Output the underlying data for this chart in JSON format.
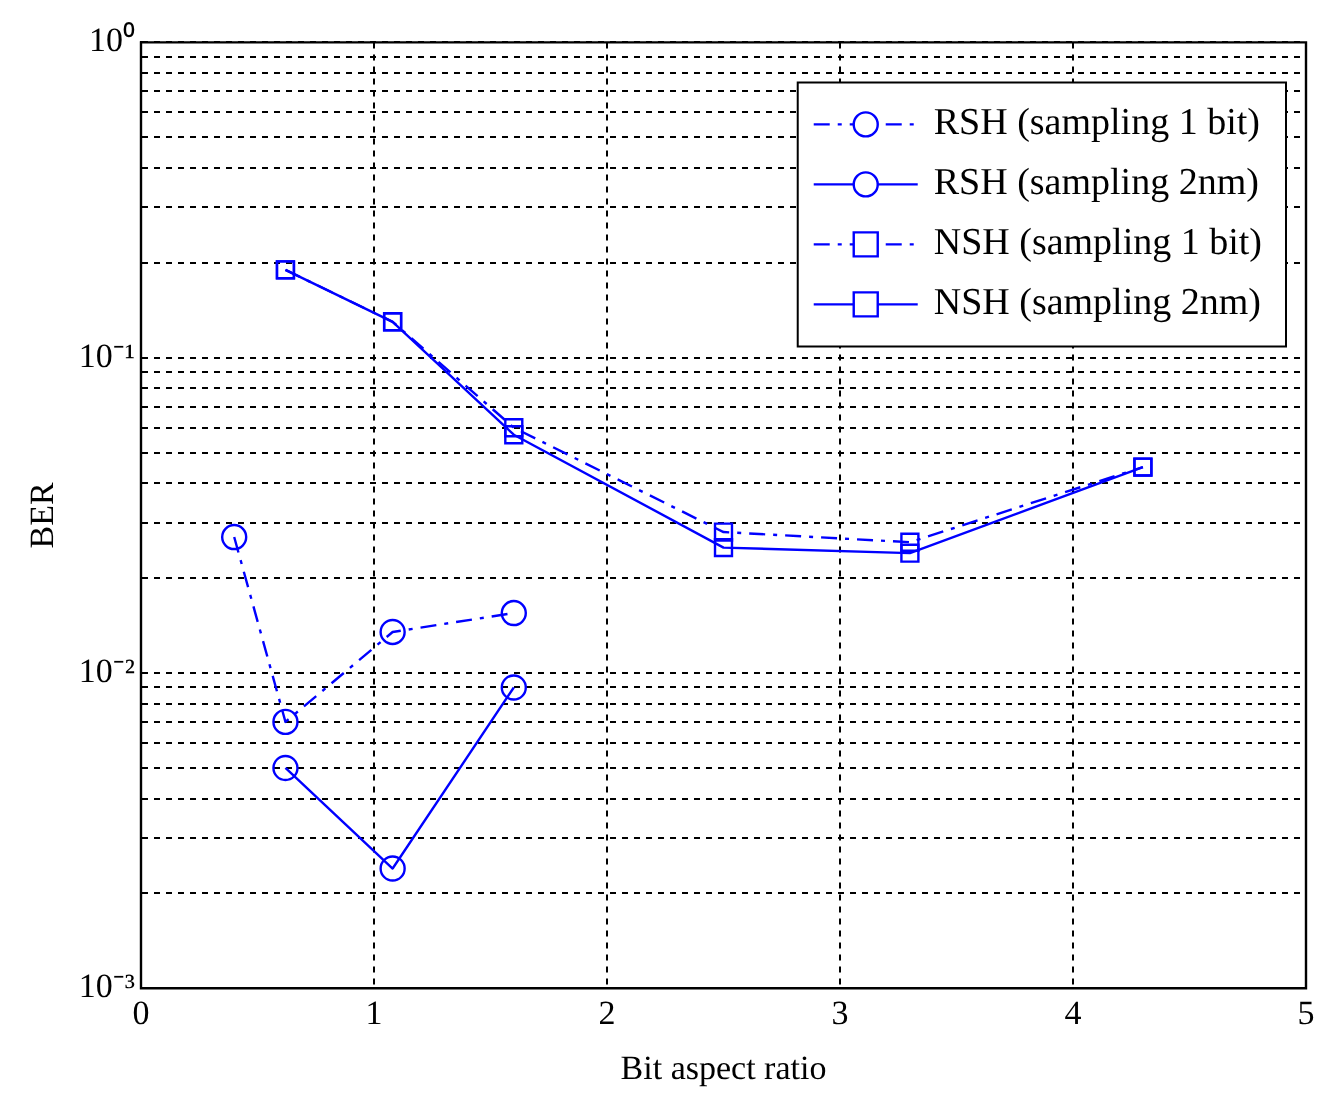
{
  "chart_data": {
    "type": "line",
    "xlabel": "Bit aspect ratio",
    "ylabel": "BER",
    "log": "y",
    "grid": true,
    "legend": "top right",
    "xlim": [
      0,
      5
    ],
    "xticks": [
      0,
      1,
      2,
      3,
      4,
      5
    ],
    "ylim": [
      0.001,
      1
    ],
    "yticks": [
      {
        "value": 0.001,
        "label": "10⁻³"
      },
      {
        "value": 0.002,
        "label": null
      },
      {
        "value": 0.003,
        "label": null
      },
      {
        "value": 0.004,
        "label": null
      },
      {
        "value": 0.005,
        "label": null
      },
      {
        "value": 0.006,
        "label": null
      },
      {
        "value": 0.007,
        "label": null
      },
      {
        "value": 0.008,
        "label": null
      },
      {
        "value": 0.009,
        "label": null
      },
      {
        "value": 0.01,
        "label": "10⁻²"
      },
      {
        "value": 0.02,
        "label": null
      },
      {
        "value": 0.03,
        "label": null
      },
      {
        "value": 0.04,
        "label": null
      },
      {
        "value": 0.05,
        "label": null
      },
      {
        "value": 0.06,
        "label": null
      },
      {
        "value": 0.07,
        "label": null
      },
      {
        "value": 0.08,
        "label": null
      },
      {
        "value": 0.09,
        "label": null
      },
      {
        "value": 0.1,
        "label": "10⁻¹"
      },
      {
        "value": 0.2,
        "label": null
      },
      {
        "value": 0.3,
        "label": null
      },
      {
        "value": 0.4,
        "label": null
      },
      {
        "value": 0.5,
        "label": null
      },
      {
        "value": 0.6,
        "label": null
      },
      {
        "value": 0.7,
        "label": null
      },
      {
        "value": 0.8,
        "label": null
      },
      {
        "value": 0.9,
        "label": null
      },
      {
        "value": 1,
        "label": "10⁰"
      }
    ],
    "series": [
      {
        "name": "RSH (sampling 1 bit)",
        "color": "#0000ff",
        "marker": "circle",
        "line_style": "dashed",
        "x": [
          0.4,
          0.62,
          1.08,
          1.6
        ],
        "values": [
          0.027,
          0.007,
          0.0135,
          0.0155
        ]
      },
      {
        "name": "RSH (sampling 2nm)",
        "color": "#0000ff",
        "marker": "circle",
        "line_style": "solid",
        "x": [
          0.62,
          1.08,
          1.6
        ],
        "values": [
          0.005,
          0.0024,
          0.009
        ]
      },
      {
        "name": "NSH (sampling 1 bit)",
        "color": "#0000ff",
        "marker": "square",
        "line_style": "dashed",
        "x": [
          0.62,
          1.08,
          1.6,
          2.5,
          3.3,
          4.3
        ],
        "values": [
          0.19,
          0.13,
          0.06,
          0.028,
          0.026,
          0.045
        ]
      },
      {
        "name": "NSH (sampling 2nm)",
        "color": "#0000ff",
        "marker": "square",
        "line_style": "solid",
        "x": [
          0.62,
          1.08,
          1.6,
          2.5,
          3.3,
          4.3
        ],
        "values": [
          0.19,
          0.13,
          0.057,
          0.025,
          0.024,
          0.045
        ]
      }
    ]
  }
}
